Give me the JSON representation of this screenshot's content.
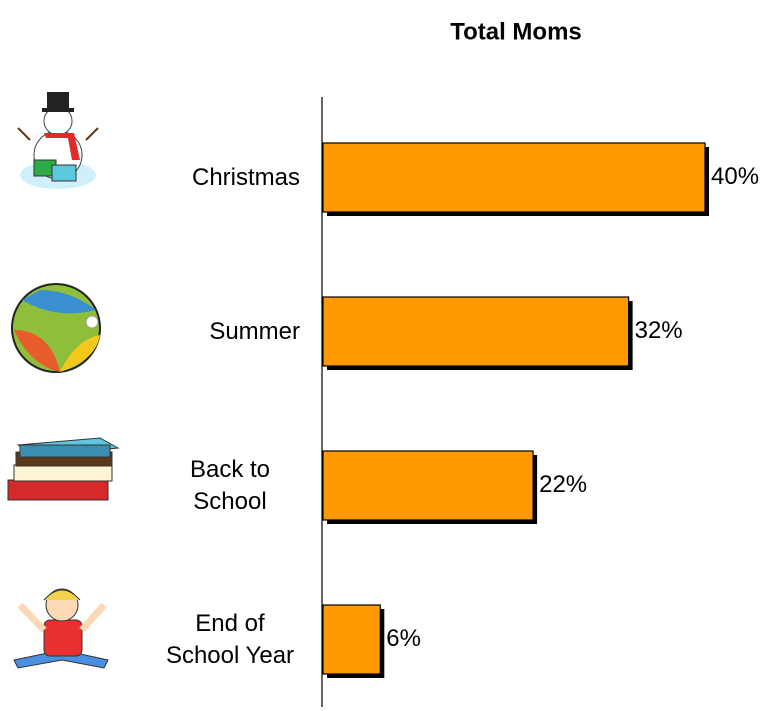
{
  "chart_data": {
    "type": "bar",
    "orientation": "horizontal",
    "title": "Total Moms",
    "categories": [
      "Christmas",
      "Summer",
      "Back to School",
      "End of School Year"
    ],
    "values": [
      40,
      32,
      22,
      6
    ],
    "value_labels": [
      "40%",
      "32%",
      "22%",
      "6%"
    ],
    "color": "#ff9900"
  }
}
